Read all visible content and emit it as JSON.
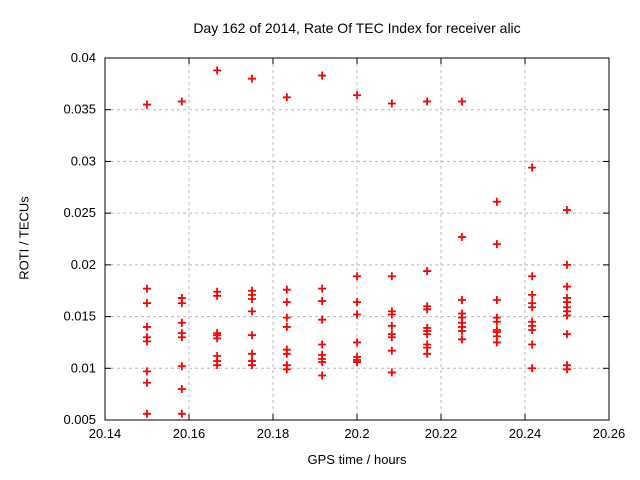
{
  "title": "Day 162 of 2014, Rate Of TEC Index for receiver alic",
  "colors": {
    "marker": "#ff0000",
    "grid": "#b9b9b9",
    "frame": "#000000",
    "background": "#ffffff",
    "text": "#000000"
  },
  "chart_data": {
    "type": "scatter",
    "title": "Day 162 of 2014, Rate Of TEC Index for receiver alic",
    "xlabel": "GPS time / hours",
    "ylabel": "ROTI / TECUs",
    "xlim": [
      20.14,
      20.26
    ],
    "ylim": [
      0.005,
      0.04
    ],
    "xticks": [
      20.14,
      20.16,
      20.18,
      20.2,
      20.22,
      20.24,
      20.26
    ],
    "xtick_labels": [
      "20.14",
      "20.16",
      "20.18",
      "20.2",
      "20.22",
      "20.24",
      "20.26"
    ],
    "yticks": [
      0.005,
      0.01,
      0.015,
      0.02,
      0.025,
      0.03,
      0.035,
      0.04
    ],
    "ytick_labels": [
      "0.005",
      "0.01",
      "0.015",
      "0.02",
      "0.025",
      "0.03",
      "0.035",
      "0.04"
    ],
    "grid": true,
    "grid_style": "dashed",
    "legend": "none",
    "marker": "plus",
    "series": [
      {
        "name": "ROTI",
        "color": "#ff0000",
        "points": [
          [
            20.15,
            0.0355
          ],
          [
            20.15,
            0.0177
          ],
          [
            20.15,
            0.0163
          ],
          [
            20.15,
            0.014
          ],
          [
            20.15,
            0.013
          ],
          [
            20.15,
            0.0126
          ],
          [
            20.15,
            0.0097
          ],
          [
            20.15,
            0.0086
          ],
          [
            20.15,
            0.0056
          ],
          [
            20.1583,
            0.0358
          ],
          [
            20.1583,
            0.0168
          ],
          [
            20.1583,
            0.0163
          ],
          [
            20.1583,
            0.0144
          ],
          [
            20.1583,
            0.0134
          ],
          [
            20.1583,
            0.013
          ],
          [
            20.1583,
            0.0102
          ],
          [
            20.1583,
            0.008
          ],
          [
            20.1583,
            0.0056
          ],
          [
            20.1667,
            0.0388
          ],
          [
            20.1667,
            0.0174
          ],
          [
            20.1667,
            0.017
          ],
          [
            20.1667,
            0.0134
          ],
          [
            20.1667,
            0.0132
          ],
          [
            20.1667,
            0.0129
          ],
          [
            20.1667,
            0.0112
          ],
          [
            20.1667,
            0.0107
          ],
          [
            20.1667,
            0.0103
          ],
          [
            20.175,
            0.038
          ],
          [
            20.175,
            0.0175
          ],
          [
            20.175,
            0.0171
          ],
          [
            20.175,
            0.0167
          ],
          [
            20.175,
            0.0155
          ],
          [
            20.175,
            0.0132
          ],
          [
            20.175,
            0.0114
          ],
          [
            20.175,
            0.0107
          ],
          [
            20.175,
            0.0103
          ],
          [
            20.1833,
            0.0362
          ],
          [
            20.1833,
            0.0176
          ],
          [
            20.1833,
            0.0164
          ],
          [
            20.1833,
            0.0149
          ],
          [
            20.1833,
            0.014
          ],
          [
            20.1833,
            0.0118
          ],
          [
            20.1833,
            0.0114
          ],
          [
            20.1833,
            0.0103
          ],
          [
            20.1833,
            0.0099
          ],
          [
            20.1917,
            0.0383
          ],
          [
            20.1917,
            0.0177
          ],
          [
            20.1917,
            0.0165
          ],
          [
            20.1917,
            0.0147
          ],
          [
            20.1917,
            0.0123
          ],
          [
            20.1917,
            0.0113
          ],
          [
            20.1917,
            0.0109
          ],
          [
            20.1917,
            0.0106
          ],
          [
            20.1917,
            0.0093
          ],
          [
            20.2,
            0.0364
          ],
          [
            20.2,
            0.0189
          ],
          [
            20.2,
            0.0164
          ],
          [
            20.2,
            0.0152
          ],
          [
            20.2,
            0.0125
          ],
          [
            20.2,
            0.0111
          ],
          [
            20.2,
            0.0108
          ],
          [
            20.2,
            0.0106
          ],
          [
            20.2083,
            0.0356
          ],
          [
            20.2083,
            0.0189
          ],
          [
            20.2083,
            0.0155
          ],
          [
            20.2083,
            0.0152
          ],
          [
            20.2083,
            0.0141
          ],
          [
            20.2083,
            0.0133
          ],
          [
            20.2083,
            0.013
          ],
          [
            20.2083,
            0.0117
          ],
          [
            20.2083,
            0.0096
          ],
          [
            20.2167,
            0.0358
          ],
          [
            20.2167,
            0.0194
          ],
          [
            20.2167,
            0.016
          ],
          [
            20.2167,
            0.0157
          ],
          [
            20.2167,
            0.0139
          ],
          [
            20.2167,
            0.0136
          ],
          [
            20.2167,
            0.0133
          ],
          [
            20.2167,
            0.0123
          ],
          [
            20.2167,
            0.012
          ],
          [
            20.2167,
            0.0114
          ],
          [
            20.225,
            0.0358
          ],
          [
            20.225,
            0.0227
          ],
          [
            20.225,
            0.0166
          ],
          [
            20.225,
            0.0153
          ],
          [
            20.225,
            0.0149
          ],
          [
            20.225,
            0.0144
          ],
          [
            20.225,
            0.014
          ],
          [
            20.225,
            0.0136
          ],
          [
            20.225,
            0.0128
          ],
          [
            20.2333,
            0.0261
          ],
          [
            20.2333,
            0.022
          ],
          [
            20.2333,
            0.0166
          ],
          [
            20.2333,
            0.0149
          ],
          [
            20.2333,
            0.0145
          ],
          [
            20.2333,
            0.0137
          ],
          [
            20.2333,
            0.0135
          ],
          [
            20.2333,
            0.0131
          ],
          [
            20.2333,
            0.0125
          ],
          [
            20.2417,
            0.0294
          ],
          [
            20.2417,
            0.0189
          ],
          [
            20.2417,
            0.0171
          ],
          [
            20.2417,
            0.0163
          ],
          [
            20.2417,
            0.0159
          ],
          [
            20.2417,
            0.0145
          ],
          [
            20.2417,
            0.0141
          ],
          [
            20.2417,
            0.0137
          ],
          [
            20.2417,
            0.0123
          ],
          [
            20.2417,
            0.01
          ],
          [
            20.25,
            0.0253
          ],
          [
            20.25,
            0.02
          ],
          [
            20.25,
            0.0179
          ],
          [
            20.25,
            0.0168
          ],
          [
            20.25,
            0.0164
          ],
          [
            20.25,
            0.0159
          ],
          [
            20.25,
            0.0155
          ],
          [
            20.25,
            0.0151
          ],
          [
            20.25,
            0.0133
          ],
          [
            20.25,
            0.0103
          ],
          [
            20.25,
            0.0099
          ]
        ]
      }
    ]
  }
}
